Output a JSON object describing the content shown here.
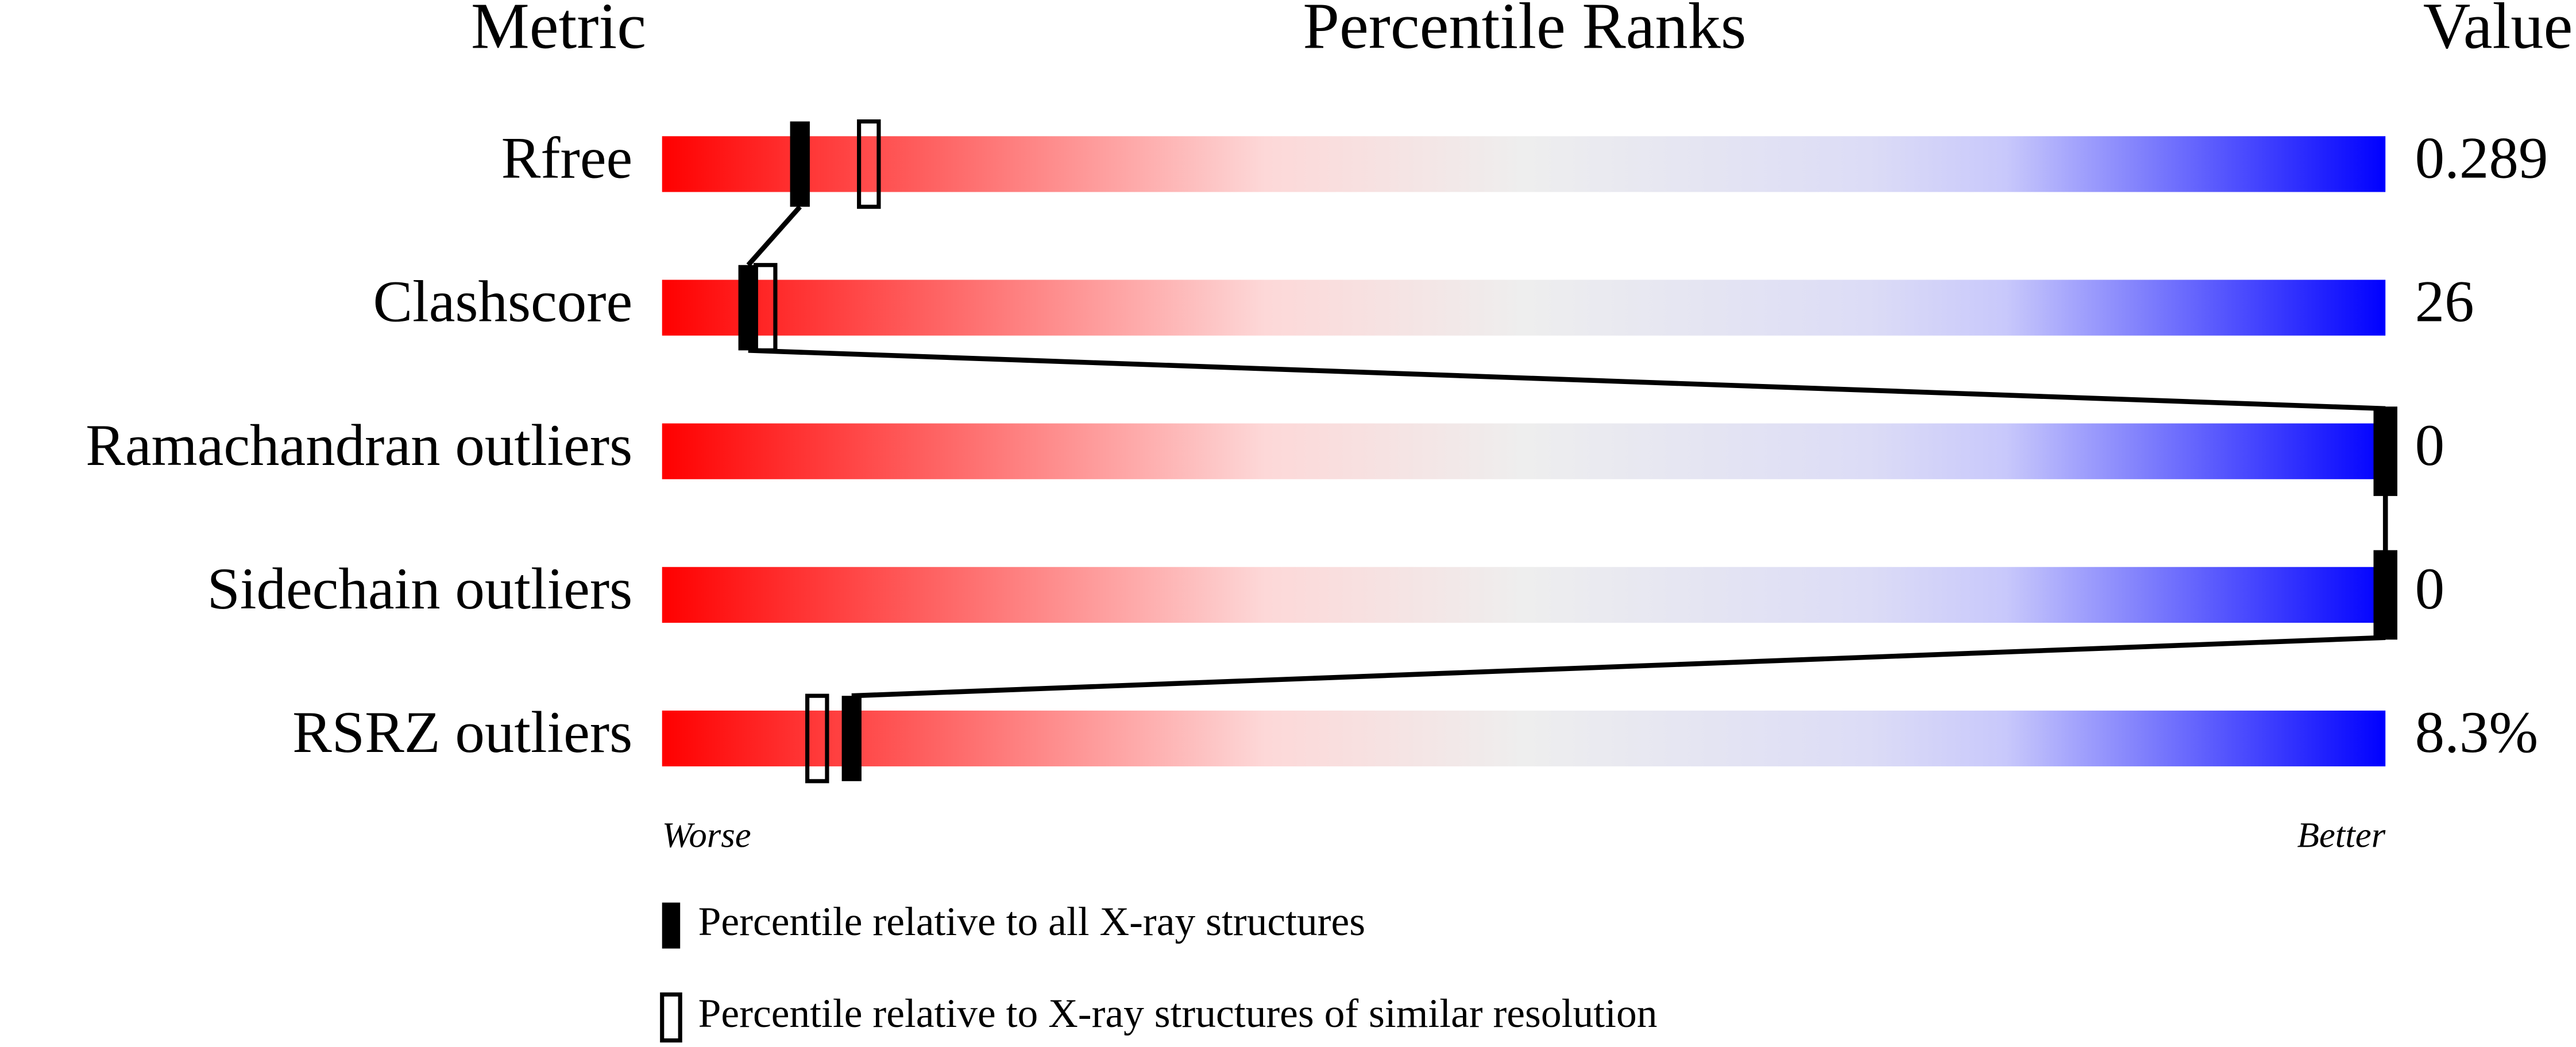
{
  "chart_data": {
    "type": "percentile-slider",
    "headers": [
      "Metric",
      "Percentile Ranks",
      "Value"
    ],
    "categories": [
      "Rfree",
      "Clashscore",
      "Ramachandran outliers",
      "Sidechain outliers",
      "RSRZ outliers"
    ],
    "value_column": [
      "0.289",
      "26",
      "0",
      "0",
      "8.3%"
    ],
    "xlim": [
      0,
      100
    ],
    "x_axis_labels": [
      "Worse",
      "Better"
    ],
    "series": [
      {
        "name": "Percentile relative to all X-ray structures",
        "color": "#000000",
        "style": "filled",
        "values": [
          8,
          5,
          100,
          100,
          11
        ]
      },
      {
        "name": "Percentile relative to X-ray structures of similar resolution",
        "color": "#000000",
        "style": "hollow",
        "values": [
          12,
          6,
          100,
          100,
          9
        ]
      }
    ]
  }
}
